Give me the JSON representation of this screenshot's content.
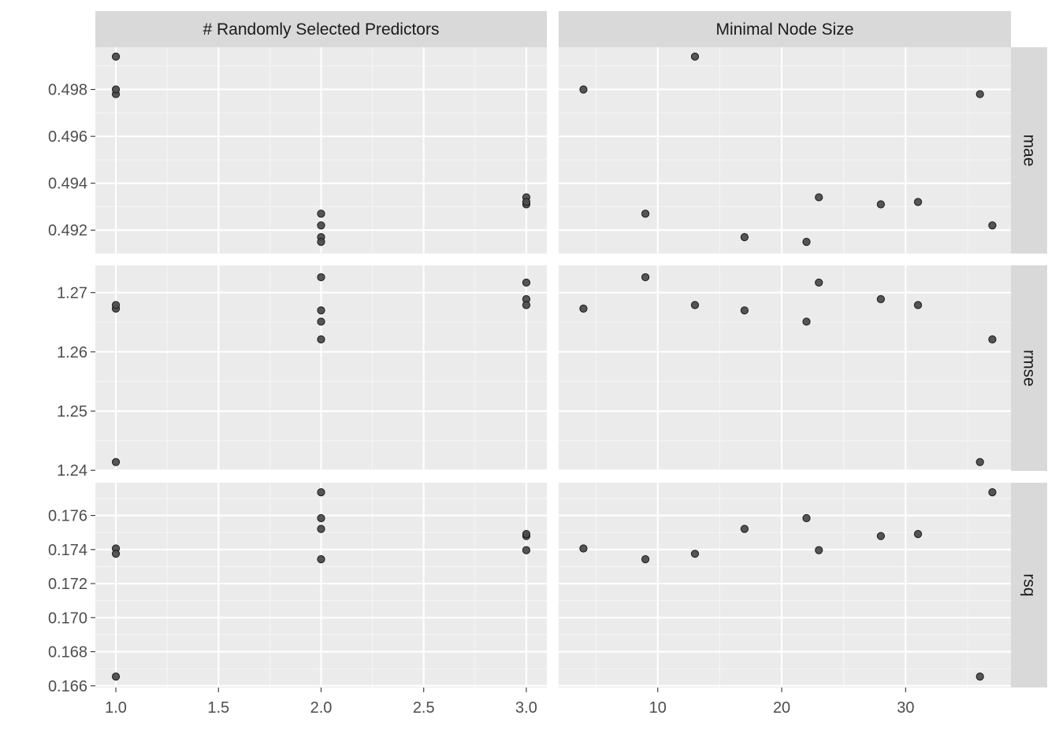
{
  "chart_data": {
    "type": "scatter",
    "facets": {
      "columns": [
        "# Randomly Selected Predictors",
        "Minimal Node Size"
      ],
      "rows": [
        "mae",
        "rmse",
        "rsq"
      ]
    },
    "columns": [
      {
        "label": "# Randomly Selected Predictors",
        "xlim": [
          0.9,
          3.1
        ],
        "ticks": [
          1.0,
          1.5,
          2.0,
          2.5,
          3.0
        ],
        "tick_labels": [
          "1.0",
          "1.5",
          "2.0",
          "2.5",
          "3.0"
        ]
      },
      {
        "label": "Minimal Node Size",
        "xlim": [
          2.0,
          38.5
        ],
        "ticks": [
          10,
          20,
          30
        ],
        "tick_labels": [
          "10",
          "20",
          "30"
        ]
      }
    ],
    "rows": [
      {
        "label": "mae",
        "ylim": [
          0.491,
          0.4998
        ],
        "ticks": [
          0.492,
          0.494,
          0.496,
          0.498
        ],
        "tick_labels": [
          "0.492",
          "0.494",
          "0.496",
          "0.498"
        ]
      },
      {
        "label": "rmse",
        "ylim": [
          1.2399,
          1.2746
        ],
        "ticks": [
          1.24,
          1.25,
          1.26,
          1.27
        ],
        "tick_labels": [
          "1.24",
          "1.25",
          "1.26",
          "1.27"
        ]
      },
      {
        "label": "rsq",
        "ylim": [
          0.1659,
          0.17792
        ],
        "ticks": [
          0.166,
          0.168,
          0.17,
          0.172,
          0.174,
          0.176
        ],
        "tick_labels": [
          "0.166",
          "0.168",
          "0.170",
          "0.172",
          "0.174",
          "0.176"
        ]
      }
    ],
    "models": [
      {
        "mtry": 1,
        "min_n": 36,
        "mae": 0.4978,
        "rmse": 1.2414,
        "rsq": 0.16654
      },
      {
        "mtry": 1,
        "min_n": 4,
        "mae": 0.498,
        "rmse": 1.2673,
        "rsq": 0.17406
      },
      {
        "mtry": 1,
        "min_n": 13,
        "mae": 0.4994,
        "rmse": 1.2679,
        "rsq": 0.17375
      },
      {
        "mtry": 2,
        "min_n": 9,
        "mae": 0.4927,
        "rmse": 1.2726,
        "rsq": 0.17343
      },
      {
        "mtry": 2,
        "min_n": 17,
        "mae": 0.4917,
        "rmse": 1.267,
        "rsq": 0.17521
      },
      {
        "mtry": 2,
        "min_n": 22,
        "mae": 0.4915,
        "rmse": 1.2651,
        "rsq": 0.17584
      },
      {
        "mtry": 2,
        "min_n": 37,
        "mae": 0.4922,
        "rmse": 1.2621,
        "rsq": 0.17736
      },
      {
        "mtry": 3,
        "min_n": 23,
        "mae": 0.4934,
        "rmse": 1.2717,
        "rsq": 0.17396
      },
      {
        "mtry": 3,
        "min_n": 28,
        "mae": 0.4931,
        "rmse": 1.2689,
        "rsq": 0.17479
      },
      {
        "mtry": 3,
        "min_n": 31,
        "mae": 0.4932,
        "rmse": 1.2679,
        "rsq": 0.17491
      }
    ],
    "grid": true,
    "legend": "none",
    "point_color": "#333333"
  }
}
